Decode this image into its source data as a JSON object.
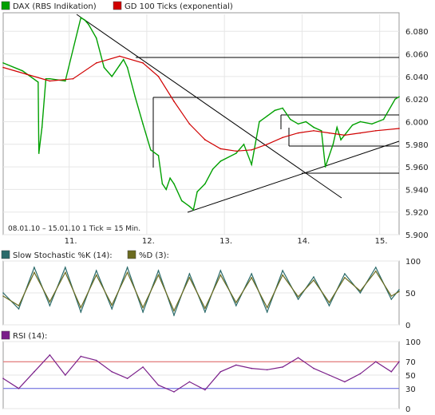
{
  "chart_data": [
    {
      "type": "line",
      "panel": "price",
      "legend": [
        {
          "name": "DAX (RBS Indikation)",
          "color": "#00a000"
        },
        {
          "name": "GD 100 Ticks (exponential)",
          "color": "#d00000"
        }
      ],
      "info_text": "08.01.10 – 15.01.10   1 Tick = 15 Min.",
      "x_ticks": [
        "11.",
        "12.",
        "13.",
        "14.",
        "15."
      ],
      "y_ticks": [
        "6.080",
        "6.060",
        "6.040",
        "6.020",
        "6.000",
        "5.980",
        "5.960",
        "5.940",
        "5.920",
        "5.900"
      ],
      "ylim": [
        5900,
        6095
      ],
      "xlim": [
        0,
        5.1
      ],
      "series": [
        {
          "name": "DAX (RBS Indikation)",
          "color": "#00a000",
          "x": [
            0,
            0.25,
            0.45,
            0.46,
            0.5,
            0.55,
            0.6,
            0.8,
            1.0,
            1.05,
            1.1,
            1.2,
            1.3,
            1.4,
            1.5,
            1.55,
            1.6,
            1.7,
            1.8,
            1.9,
            2.0,
            2.05,
            2.1,
            2.15,
            2.2,
            2.3,
            2.4,
            2.45,
            2.5,
            2.6,
            2.7,
            2.8,
            3.0,
            3.1,
            3.2,
            3.3,
            3.4,
            3.5,
            3.6,
            3.7,
            3.8,
            3.9,
            4.0,
            4.1,
            4.15,
            4.25,
            4.3,
            4.35,
            4.5,
            4.6,
            4.75,
            4.9,
            5.05,
            5.1
          ],
          "values": [
            6052,
            6045,
            6035,
            5972,
            5995,
            6038,
            6038,
            6036,
            6092,
            6090,
            6086,
            6074,
            6048,
            6040,
            6050,
            6055,
            6048,
            6022,
            5998,
            5975,
            5970,
            5945,
            5940,
            5950,
            5945,
            5930,
            5925,
            5922,
            5938,
            5945,
            5958,
            5965,
            5972,
            5980,
            5962,
            6000,
            6005,
            6010,
            6012,
            6002,
            5998,
            6000,
            5995,
            5992,
            5960,
            5980,
            5995,
            5984,
            5997,
            6000,
            5998,
            6002,
            6020,
            6022
          ]
        },
        {
          "name": "GD 100 Ticks (exponential)",
          "color": "#d00000",
          "x": [
            0,
            0.3,
            0.6,
            0.9,
            1.2,
            1.5,
            1.8,
            2.0,
            2.2,
            2.4,
            2.6,
            2.8,
            3.0,
            3.2,
            3.4,
            3.6,
            3.8,
            4.0,
            4.2,
            4.4,
            4.6,
            4.8,
            5.1
          ],
          "values": [
            6048,
            6042,
            6036,
            6038,
            6052,
            6058,
            6052,
            6040,
            6018,
            5998,
            5984,
            5976,
            5974,
            5975,
            5980,
            5986,
            5990,
            5992,
            5990,
            5988,
            5990,
            5992,
            5994
          ]
        }
      ]
    },
    {
      "type": "line",
      "panel": "stochastic",
      "legend": [
        {
          "name": "Slow Stochastic %K (14):",
          "color": "#2a6a6a"
        },
        {
          "name": "%D (3):",
          "color": "#6b6b20"
        }
      ],
      "y_ticks": [
        "100",
        "50",
        "0"
      ],
      "ylim": [
        0,
        100
      ],
      "xlim": [
        0,
        5.1
      ],
      "series": [
        {
          "name": "Slow Stochastic %K (14):",
          "color": "#2a6a6a",
          "x": [
            0,
            0.2,
            0.4,
            0.6,
            0.8,
            1.0,
            1.2,
            1.4,
            1.6,
            1.8,
            2.0,
            2.2,
            2.4,
            2.6,
            2.8,
            3.0,
            3.2,
            3.4,
            3.6,
            3.8,
            4.0,
            4.2,
            4.4,
            4.6,
            4.8,
            5.0,
            5.1
          ],
          "values": [
            50,
            25,
            90,
            30,
            90,
            20,
            85,
            25,
            90,
            20,
            85,
            15,
            80,
            20,
            85,
            30,
            80,
            20,
            85,
            40,
            75,
            30,
            80,
            50,
            90,
            40,
            55
          ]
        },
        {
          "name": "%D (3):",
          "color": "#6b6b20",
          "x": [
            0,
            0.2,
            0.4,
            0.6,
            0.8,
            1.0,
            1.2,
            1.4,
            1.6,
            1.8,
            2.0,
            2.2,
            2.4,
            2.6,
            2.8,
            3.0,
            3.2,
            3.4,
            3.6,
            3.8,
            4.0,
            4.2,
            4.4,
            4.6,
            4.8,
            5.0,
            5.1
          ],
          "values": [
            45,
            30,
            82,
            36,
            82,
            27,
            78,
            31,
            82,
            27,
            78,
            22,
            74,
            26,
            78,
            35,
            74,
            27,
            78,
            44,
            70,
            35,
            74,
            53,
            84,
            45,
            52
          ]
        }
      ]
    },
    {
      "type": "line",
      "panel": "rsi",
      "legend": [
        {
          "name": "RSI (14):",
          "color": "#7a1f8a"
        }
      ],
      "y_ticks": [
        "100",
        "70",
        "50",
        "30",
        "0"
      ],
      "ylim": [
        0,
        100
      ],
      "levels": [
        70,
        30
      ],
      "xlim": [
        0,
        5.1
      ],
      "series": [
        {
          "name": "RSI (14):",
          "color": "#7a1f8a",
          "x": [
            0,
            0.2,
            0.4,
            0.6,
            0.8,
            1.0,
            1.2,
            1.4,
            1.6,
            1.8,
            2.0,
            2.2,
            2.4,
            2.6,
            2.8,
            3.0,
            3.2,
            3.4,
            3.6,
            3.8,
            4.0,
            4.2,
            4.4,
            4.6,
            4.8,
            5.0,
            5.1
          ],
          "values": [
            45,
            30,
            55,
            80,
            50,
            78,
            72,
            55,
            45,
            62,
            35,
            25,
            40,
            28,
            55,
            65,
            60,
            58,
            62,
            76,
            60,
            50,
            40,
            52,
            70,
            55,
            70
          ]
        }
      ]
    }
  ]
}
